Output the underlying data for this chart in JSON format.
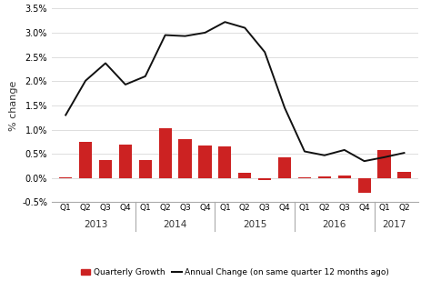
{
  "categories": [
    "Q1",
    "Q2",
    "Q3",
    "Q4",
    "Q1",
    "Q2",
    "Q3",
    "Q4",
    "Q1",
    "Q2",
    "Q3",
    "Q4",
    "Q1",
    "Q2",
    "Q3",
    "Q4",
    "Q1",
    "Q2"
  ],
  "year_labels": [
    "2013",
    "2014",
    "2015",
    "2016",
    "2017"
  ],
  "year_centers": [
    1.5,
    5.5,
    9.5,
    13.5,
    16.5
  ],
  "year_tick_edges": [
    -0.5,
    3.5,
    7.5,
    11.5,
    15.5,
    17.5
  ],
  "quarterly_growth": [
    0.02,
    0.75,
    0.38,
    0.7,
    0.38,
    1.02,
    0.8,
    0.68,
    0.65,
    0.1,
    -0.04,
    0.43,
    0.02,
    0.04,
    0.06,
    -0.3,
    0.58,
    0.12
  ],
  "annual_change": [
    1.3,
    2.01,
    2.37,
    1.93,
    2.1,
    2.95,
    2.93,
    3.0,
    3.22,
    3.1,
    2.6,
    1.45,
    0.55,
    0.47,
    0.58,
    0.35,
    0.43,
    0.52
  ],
  "bar_color": "#cc2222",
  "line_color": "#111111",
  "ylabel": "% change",
  "ylim": [
    -0.5,
    3.5
  ],
  "yticks": [
    -0.5,
    0.0,
    0.5,
    1.0,
    1.5,
    2.0,
    2.5,
    3.0,
    3.5
  ],
  "legend_bar_label": "Quarterly Growth",
  "legend_line_label": "Annual Change (on same quarter 12 months ago)",
  "background_color": "#ffffff",
  "grid_color": "#dddddd"
}
